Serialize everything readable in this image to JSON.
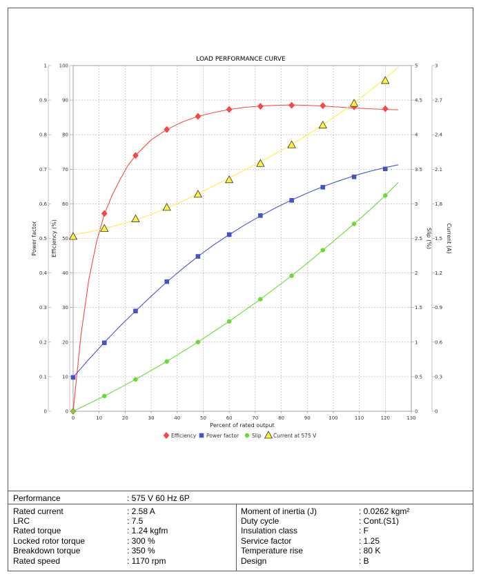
{
  "chart_data": {
    "type": "line",
    "title": "LOAD PERFORMANCE CURVE",
    "xlabel": "Percent of rated output",
    "xlim": [
      0,
      130
    ],
    "x_ticks": [
      0,
      10,
      20,
      30,
      40,
      50,
      60,
      70,
      80,
      90,
      100,
      110,
      120,
      130
    ],
    "grid": true,
    "legend_position": "bottom",
    "axes": {
      "power_factor": {
        "label": "Power factor",
        "side": "left-outer",
        "range": [
          0,
          1
        ],
        "ticks": [
          "0",
          "0.1",
          "0.2",
          "0.3",
          "0.4",
          "0.5",
          "0.6",
          "0.7",
          "0.8",
          "0.9",
          "1"
        ]
      },
      "efficiency": {
        "label": "Efficiency (%)",
        "side": "left-inner",
        "range": [
          0,
          100
        ],
        "ticks": [
          "0",
          "10",
          "20",
          "30",
          "40",
          "50",
          "60",
          "70",
          "80",
          "90",
          "100"
        ]
      },
      "slip": {
        "label": "Slip (%)",
        "side": "right-inner",
        "range": [
          0,
          5
        ],
        "ticks": [
          "0",
          "0.5",
          "1",
          "1.5",
          "2",
          "2.5",
          "3",
          "3.5",
          "4",
          "4.5",
          "5"
        ]
      },
      "current": {
        "label": "Current (A)",
        "side": "right-outer",
        "range": [
          0,
          3
        ],
        "ticks": [
          "0",
          "0.3",
          "0.6",
          "0.9",
          "1.2",
          "1.5",
          "1.8",
          "2.1",
          "2.4",
          "2.7",
          "3"
        ]
      }
    },
    "series": [
      {
        "name": "Efficiency",
        "axis": "efficiency",
        "color": "#ff4444",
        "marker": "diamond",
        "points": [
          [
            0,
            0
          ],
          [
            12,
            57.2
          ],
          [
            24,
            74
          ],
          [
            36,
            81.5
          ],
          [
            48,
            85.3
          ],
          [
            60,
            87.3
          ],
          [
            72,
            88.2
          ],
          [
            84,
            88.5
          ],
          [
            96,
            88.4
          ],
          [
            108,
            88.1
          ],
          [
            120,
            87.5
          ]
        ],
        "curve": [
          [
            0,
            0
          ],
          [
            3,
            22
          ],
          [
            6,
            38
          ],
          [
            9,
            49
          ],
          [
            12,
            57
          ],
          [
            15,
            62.5
          ],
          [
            18,
            67
          ],
          [
            21,
            71
          ],
          [
            24,
            74
          ],
          [
            30,
            78.5
          ],
          [
            36,
            81.5
          ],
          [
            42,
            83.7
          ],
          [
            48,
            85.3
          ],
          [
            54,
            86.4
          ],
          [
            60,
            87.3
          ],
          [
            66,
            87.9
          ],
          [
            72,
            88.3
          ],
          [
            78,
            88.5
          ],
          [
            84,
            88.6
          ],
          [
            90,
            88.5
          ],
          [
            96,
            88.3
          ],
          [
            102,
            88
          ],
          [
            108,
            87.7
          ],
          [
            114,
            87.5
          ],
          [
            120,
            87.3
          ],
          [
            125,
            87.2
          ]
        ]
      },
      {
        "name": "Power factor",
        "axis": "power_factor",
        "color": "#4455cc",
        "marker": "square",
        "points": [
          [
            0,
            0.098
          ],
          [
            12,
            0.198
          ],
          [
            24,
            0.29
          ],
          [
            36,
            0.375
          ],
          [
            48,
            0.448
          ],
          [
            60,
            0.511
          ],
          [
            72,
            0.566
          ],
          [
            84,
            0.61
          ],
          [
            96,
            0.648
          ],
          [
            108,
            0.678
          ],
          [
            120,
            0.701
          ]
        ],
        "curve": [
          [
            0,
            0.098
          ],
          [
            6,
            0.15
          ],
          [
            12,
            0.199
          ],
          [
            18,
            0.246
          ],
          [
            24,
            0.29
          ],
          [
            30,
            0.333
          ],
          [
            36,
            0.374
          ],
          [
            42,
            0.412
          ],
          [
            48,
            0.448
          ],
          [
            54,
            0.481
          ],
          [
            60,
            0.511
          ],
          [
            66,
            0.539
          ],
          [
            72,
            0.565
          ],
          [
            78,
            0.589
          ],
          [
            84,
            0.611
          ],
          [
            90,
            0.631
          ],
          [
            96,
            0.65
          ],
          [
            102,
            0.666
          ],
          [
            108,
            0.681
          ],
          [
            114,
            0.694
          ],
          [
            120,
            0.705
          ],
          [
            125,
            0.713
          ]
        ]
      },
      {
        "name": "Slip",
        "axis": "slip",
        "color": "#66dd33",
        "marker": "circle",
        "points": [
          [
            0,
            0
          ],
          [
            12,
            0.22
          ],
          [
            24,
            0.46
          ],
          [
            36,
            0.72
          ],
          [
            48,
            1.0
          ],
          [
            60,
            1.3
          ],
          [
            72,
            1.62
          ],
          [
            84,
            1.96
          ],
          [
            96,
            2.33
          ],
          [
            108,
            2.71
          ],
          [
            120,
            3.12
          ]
        ],
        "curve": [
          [
            0,
            0
          ],
          [
            6,
            0.11
          ],
          [
            12,
            0.22
          ],
          [
            18,
            0.34
          ],
          [
            24,
            0.46
          ],
          [
            30,
            0.59
          ],
          [
            36,
            0.72
          ],
          [
            42,
            0.86
          ],
          [
            48,
            1.0
          ],
          [
            54,
            1.15
          ],
          [
            60,
            1.3
          ],
          [
            66,
            1.46
          ],
          [
            72,
            1.62
          ],
          [
            78,
            1.79
          ],
          [
            84,
            1.96
          ],
          [
            90,
            2.14
          ],
          [
            96,
            2.33
          ],
          [
            102,
            2.52
          ],
          [
            108,
            2.71
          ],
          [
            114,
            2.91
          ],
          [
            120,
            3.12
          ],
          [
            125,
            3.31
          ]
        ]
      },
      {
        "name": "Current at 575 V",
        "axis": "current",
        "color": "#ffee44",
        "marker": "triangle",
        "points": [
          [
            0,
            1.515
          ],
          [
            12,
            1.584
          ],
          [
            24,
            1.668
          ],
          [
            36,
            1.767
          ],
          [
            48,
            1.881
          ],
          [
            60,
            2.007
          ],
          [
            72,
            2.148
          ],
          [
            84,
            2.31
          ],
          [
            96,
            2.481
          ],
          [
            108,
            2.67
          ],
          [
            120,
            2.868
          ]
        ],
        "curve": [
          [
            0,
            1.53
          ],
          [
            6,
            1.556
          ],
          [
            12,
            1.586
          ],
          [
            18,
            1.62
          ],
          [
            24,
            1.66
          ],
          [
            30,
            1.708
          ],
          [
            36,
            1.762
          ],
          [
            42,
            1.822
          ],
          [
            48,
            1.887
          ],
          [
            54,
            1.955
          ],
          [
            60,
            2.025
          ],
          [
            66,
            2.095
          ],
          [
            72,
            2.165
          ],
          [
            78,
            2.238
          ],
          [
            84,
            2.315
          ],
          [
            90,
            2.398
          ],
          [
            96,
            2.485
          ],
          [
            102,
            2.578
          ],
          [
            108,
            2.676
          ],
          [
            114,
            2.78
          ],
          [
            120,
            2.888
          ],
          [
            125,
            2.985
          ]
        ]
      }
    ]
  },
  "specs": {
    "performance": {
      "label": "Performance",
      "value": ": 575 V 60 Hz 6P"
    },
    "left": [
      {
        "label": "Rated current",
        "value": ": 2.58 A"
      },
      {
        "label": "LRC",
        "value": ": 7.5"
      },
      {
        "label": "Rated torque",
        "value": ": 1.24 kgfm"
      },
      {
        "label": "Locked rotor torque",
        "value": ": 300 %"
      },
      {
        "label": "Breakdown torque",
        "value": ": 350 %"
      },
      {
        "label": "Rated speed",
        "value": ": 1170 rpm"
      }
    ],
    "right": [
      {
        "label": "Moment of inertia (J)",
        "value": ": 0.0262 kgm²"
      },
      {
        "label": "Duty cycle",
        "value": ": Cont.(S1)"
      },
      {
        "label": "Insulation class",
        "value": ": F"
      },
      {
        "label": "Service factor",
        "value": ": 1.25"
      },
      {
        "label": "Temperature rise",
        "value": ": 80 K"
      },
      {
        "label": "Design",
        "value": ": B"
      }
    ]
  }
}
